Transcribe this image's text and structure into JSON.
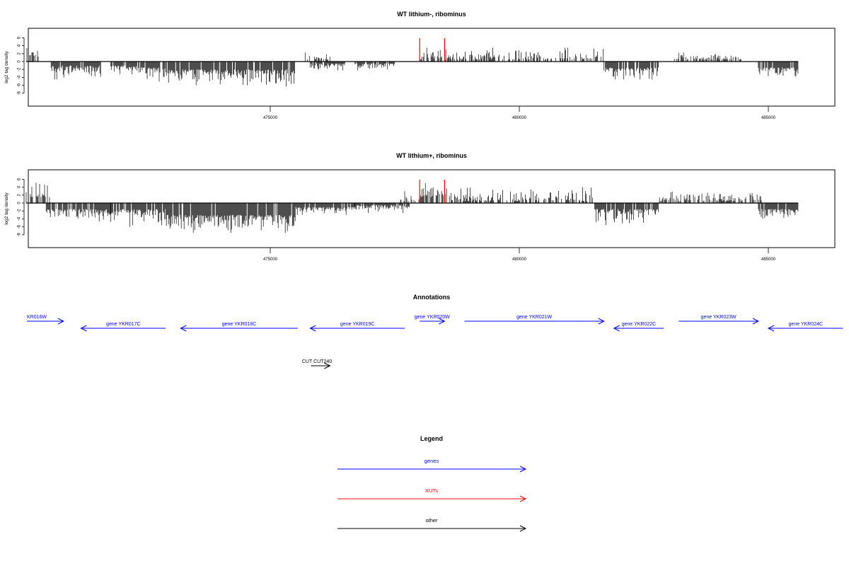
{
  "chart_data": [
    {
      "type": "bar",
      "title": "WT lithium-, ribominus",
      "ylabel": "log2 tag density",
      "ylim": [
        -8,
        6
      ],
      "yticks": [
        6,
        4,
        2,
        0,
        -2,
        -4,
        -6,
        -8
      ],
      "xlim": [
        470000,
        486000
      ],
      "xticks": [
        475000,
        480000,
        485000
      ],
      "xtick_labels": [
        "475000",
        "480000",
        "485000"
      ],
      "highlight_positions": [
        478000,
        478500
      ],
      "highlight_color": "#ff0000",
      "segments": [
        {
          "start": 470100,
          "end": 470350,
          "strand": "plus",
          "min": 1.0,
          "max": 4.8
        },
        {
          "start": 470600,
          "end": 471600,
          "strand": "minus",
          "min": 1.0,
          "max": 4.5
        },
        {
          "start": 471800,
          "end": 472400,
          "strand": "minus",
          "min": 1.0,
          "max": 3.5
        },
        {
          "start": 472400,
          "end": 472900,
          "strand": "minus",
          "min": 1.5,
          "max": 5.5
        },
        {
          "start": 472900,
          "end": 474000,
          "strand": "minus",
          "min": 2.0,
          "max": 6.0
        },
        {
          "start": 474000,
          "end": 475500,
          "strand": "minus",
          "min": 2.0,
          "max": 6.3
        },
        {
          "start": 475700,
          "end": 476200,
          "strand": "plus",
          "min": 0.5,
          "max": 3.0
        },
        {
          "start": 475800,
          "end": 476500,
          "strand": "minus",
          "min": 0.5,
          "max": 2.5
        },
        {
          "start": 476700,
          "end": 477500,
          "strand": "minus",
          "min": 0.5,
          "max": 2.2
        },
        {
          "start": 478000,
          "end": 478600,
          "strand": "plus",
          "min": 0.5,
          "max": 3.5
        },
        {
          "start": 478600,
          "end": 481700,
          "strand": "plus",
          "min": 0.5,
          "max": 3.5
        },
        {
          "start": 481700,
          "end": 482800,
          "strand": "minus",
          "min": 1.5,
          "max": 4.5
        },
        {
          "start": 483100,
          "end": 484500,
          "strand": "plus",
          "min": 0.5,
          "max": 2.5
        },
        {
          "start": 484800,
          "end": 485600,
          "strand": "minus",
          "min": 1.5,
          "max": 4.0
        }
      ]
    },
    {
      "type": "bar",
      "title": "WT lithium+, ribominus",
      "ylabel": "log2 tag density",
      "ylim": [
        -8,
        6
      ],
      "yticks": [
        6,
        4,
        2,
        0,
        -2,
        -4,
        -6,
        -8
      ],
      "xlim": [
        470000,
        486000
      ],
      "xticks": [
        475000,
        480000,
        485000
      ],
      "xtick_labels": [
        "475000",
        "480000",
        "485000"
      ],
      "highlight_positions": [
        478000,
        478500
      ],
      "highlight_color": "#ff0000",
      "segments": [
        {
          "start": 470100,
          "end": 470600,
          "strand": "plus",
          "min": 1.5,
          "max": 5.8
        },
        {
          "start": 470500,
          "end": 471800,
          "strand": "minus",
          "min": 1.5,
          "max": 5.0
        },
        {
          "start": 471800,
          "end": 472900,
          "strand": "minus",
          "min": 1.5,
          "max": 6.0
        },
        {
          "start": 472900,
          "end": 475500,
          "strand": "minus",
          "min": 3.0,
          "max": 7.5
        },
        {
          "start": 475500,
          "end": 476700,
          "strand": "minus",
          "min": 1.0,
          "max": 3.0
        },
        {
          "start": 476700,
          "end": 477800,
          "strand": "minus",
          "min": 0.5,
          "max": 2.5
        },
        {
          "start": 477600,
          "end": 478000,
          "strand": "plus",
          "min": 0.5,
          "max": 3.0
        },
        {
          "start": 478000,
          "end": 478600,
          "strand": "plus",
          "min": 1.5,
          "max": 5.0
        },
        {
          "start": 478600,
          "end": 481500,
          "strand": "plus",
          "min": 0.5,
          "max": 4.0
        },
        {
          "start": 481500,
          "end": 482800,
          "strand": "minus",
          "min": 1.5,
          "max": 6.0
        },
        {
          "start": 482800,
          "end": 484900,
          "strand": "plus",
          "min": 0.5,
          "max": 3.5
        },
        {
          "start": 484800,
          "end": 485600,
          "strand": "minus",
          "min": 1.5,
          "max": 4.0
        }
      ]
    }
  ],
  "annotations": {
    "title": "Annotations",
    "genes": [
      {
        "label": "KR016W",
        "start": 470000,
        "end": 470850,
        "strand": "plus",
        "color": "#0000ff"
      },
      {
        "label": "gene YKR017C",
        "start": 471200,
        "end": 472900,
        "strand": "minus",
        "color": "#0000ff"
      },
      {
        "label": "gene YKR018C",
        "start": 473200,
        "end": 475550,
        "strand": "minus",
        "color": "#0000ff"
      },
      {
        "label": "gene YKR019C",
        "start": 475800,
        "end": 477700,
        "strand": "minus",
        "color": "#0000ff"
      },
      {
        "label": "gene YKR020W",
        "start": 478000,
        "end": 478500,
        "strand": "plus",
        "color": "#0000ff"
      },
      {
        "label": "gene YKR021W",
        "start": 478900,
        "end": 481700,
        "strand": "plus",
        "color": "#0000ff"
      },
      {
        "label": "gene YKR022C",
        "start": 481900,
        "end": 482900,
        "strand": "minus",
        "color": "#0000ff"
      },
      {
        "label": "gene YKR023W",
        "start": 483200,
        "end": 484800,
        "strand": "plus",
        "color": "#0000ff"
      },
      {
        "label": "gene YKR024C",
        "start": 485000,
        "end": 486500,
        "strand": "minus",
        "color": "#0000ff"
      }
    ],
    "other": [
      {
        "label": "CUT CUT240",
        "start": 475700,
        "end": 476100,
        "strand": "plus",
        "color": "#000000"
      }
    ]
  },
  "legend": {
    "title": "Legend",
    "items": [
      {
        "label": "genes",
        "color": "#0000ff"
      },
      {
        "label": "XUTs",
        "color": "#ff0000"
      },
      {
        "label": "other",
        "color": "#000000"
      }
    ]
  }
}
